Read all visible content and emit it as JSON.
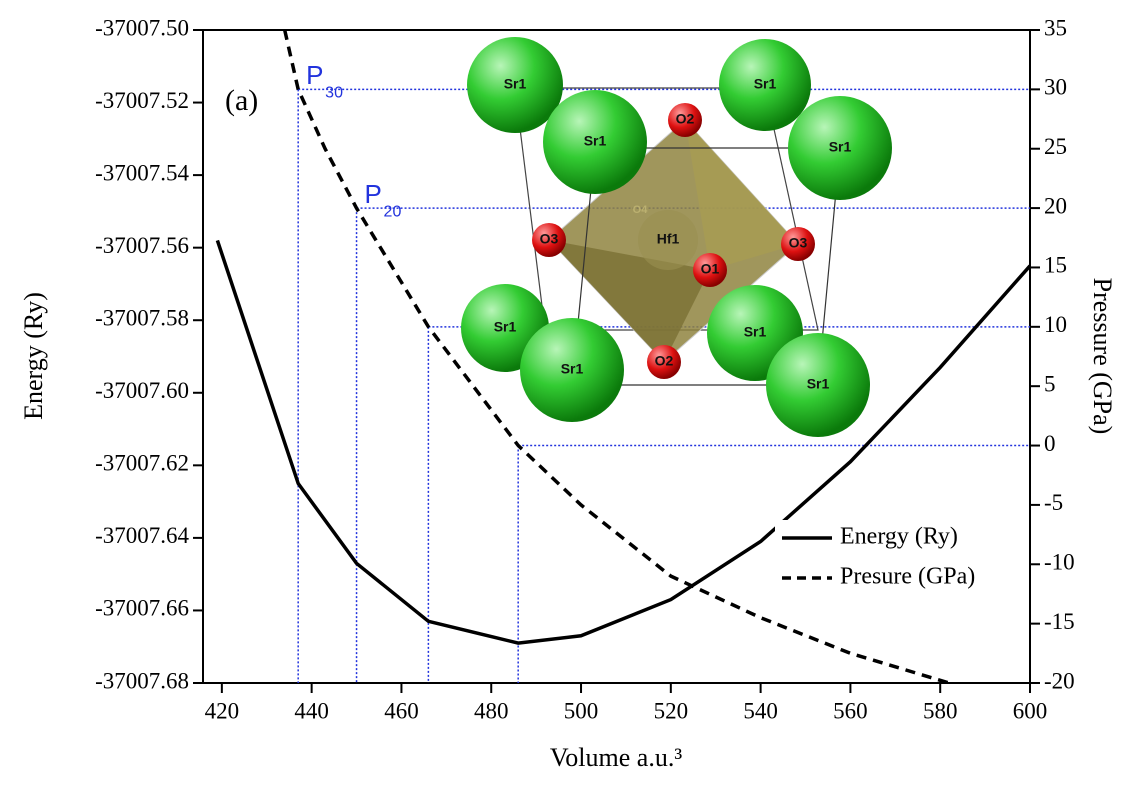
{
  "chart_data": {
    "type": "line",
    "x_label": "Volume a.u.³",
    "y_label": "Energy (Ry)",
    "y2_label": "Pressure (GPa)",
    "xlim": [
      415.8,
      600
    ],
    "xticks": [
      420,
      440,
      460,
      480,
      500,
      520,
      540,
      560,
      580,
      600
    ],
    "ylim": [
      -37007.68,
      -37007.5
    ],
    "yticks": [
      {
        "value": -37007.68,
        "label": "-37007.68"
      },
      {
        "value": -37007.66,
        "label": "-37007.66"
      },
      {
        "value": -37007.64,
        "label": "-37007.64"
      },
      {
        "value": -37007.62,
        "label": "-37007.62"
      },
      {
        "value": -37007.6,
        "label": "-37007.60"
      },
      {
        "value": -37007.58,
        "label": "-37007.58"
      },
      {
        "value": -37007.56,
        "label": "-37007.56"
      },
      {
        "value": -37007.54,
        "label": "-37007.54"
      },
      {
        "value": -37007.52,
        "label": "-37007.52"
      },
      {
        "value": -37007.5,
        "label": "-37007.50"
      }
    ],
    "y2lim": [
      -20,
      35
    ],
    "y2ticks": [
      -20,
      -15,
      -10,
      -5,
      0,
      5,
      10,
      15,
      20,
      25,
      30,
      35
    ],
    "series": [
      {
        "name": "Energy (Ry)",
        "color": "#000000",
        "dash": "solid",
        "x": [
          419,
          437,
          450,
          466,
          486,
          500,
          520,
          540,
          560,
          580,
          600
        ],
        "values": [
          -37007.558,
          -37007.625,
          -37007.647,
          -37007.663,
          -37007.669,
          -37007.667,
          -37007.657,
          -37007.641,
          -37007.619,
          -37007.593,
          -37007.565
        ]
      },
      {
        "name": "Presure (GPa)",
        "color": "#000000",
        "dash": "dashed",
        "axis": "y2",
        "x": [
          434,
          437,
          443,
          450,
          458,
          466,
          476,
          486,
          500,
          520,
          540,
          560,
          582
        ],
        "values": [
          35,
          30,
          25,
          20,
          15,
          10,
          5,
          0,
          -5,
          -11,
          -14.5,
          -17.5,
          -20
        ]
      }
    ],
    "guides": [
      {
        "volume": 437,
        "pressure": 30
      },
      {
        "volume": 450,
        "pressure": 20
      },
      {
        "volume": 466,
        "pressure": 10
      },
      {
        "volume": 486,
        "pressure": 0
      }
    ],
    "annotations": [
      {
        "text": "(a)"
      },
      {
        "text": "P",
        "sub": "30"
      },
      {
        "text": "P",
        "sub": "20"
      }
    ],
    "legend": "lower right",
    "inset_atoms": [
      "Sr1",
      "Sr1",
      "Sr1",
      "Sr1",
      "Sr1",
      "Sr1",
      "Sr1",
      "Sr1",
      "O4",
      "Hf1",
      "O2",
      "O3",
      "O3",
      "O1",
      "O2"
    ]
  }
}
